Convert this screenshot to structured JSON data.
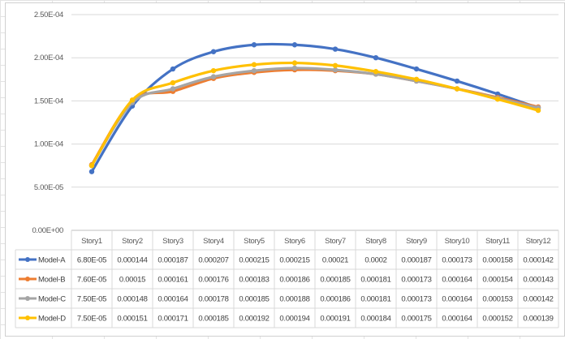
{
  "chart_data": {
    "type": "line",
    "title": "",
    "xlabel": "",
    "ylabel": "",
    "categories": [
      "Story1",
      "Story2",
      "Story3",
      "Story4",
      "Story5",
      "Story6",
      "Story7",
      "Story8",
      "Story9",
      "Story10",
      "Story11",
      "Story12"
    ],
    "y_ticks": [
      "0.00E+00",
      "5.00E-05",
      "1.00E-04",
      "1.50E-04",
      "2.00E-04",
      "2.50E-04"
    ],
    "ylim": [
      0,
      0.00025
    ],
    "grid": true,
    "legend": "data-table",
    "series": [
      {
        "name": "Model-A",
        "color": "#4472c4",
        "values": [
          6.8e-05,
          0.000144,
          0.000187,
          0.000207,
          0.000215,
          0.000215,
          0.00021,
          0.0002,
          0.000187,
          0.000173,
          0.000158,
          0.000142
        ],
        "labels": [
          "6.80E-05",
          "0.000144",
          "0.000187",
          "0.000207",
          "0.000215",
          "0.000215",
          "0.00021",
          "0.0002",
          "0.000187",
          "0.000173",
          "0.000158",
          "0.000142"
        ]
      },
      {
        "name": "Model-B",
        "color": "#ed7d31",
        "values": [
          7.6e-05,
          0.00015,
          0.000161,
          0.000176,
          0.000183,
          0.000186,
          0.000185,
          0.000181,
          0.000173,
          0.000164,
          0.000154,
          0.000143
        ],
        "labels": [
          "7.60E-05",
          "0.00015",
          "0.000161",
          "0.000176",
          "0.000183",
          "0.000186",
          "0.000185",
          "0.000181",
          "0.000173",
          "0.000164",
          "0.000154",
          "0.000143"
        ]
      },
      {
        "name": "Model-C",
        "color": "#a5a5a5",
        "values": [
          7.5e-05,
          0.000148,
          0.000164,
          0.000178,
          0.000185,
          0.000188,
          0.000186,
          0.000181,
          0.000173,
          0.000164,
          0.000153,
          0.000142
        ],
        "labels": [
          "7.50E-05",
          "0.000148",
          "0.000164",
          "0.000178",
          "0.000185",
          "0.000188",
          "0.000186",
          "0.000181",
          "0.000173",
          "0.000164",
          "0.000153",
          "0.000142"
        ]
      },
      {
        "name": "Model-D",
        "color": "#ffc000",
        "values": [
          7.5e-05,
          0.000151,
          0.000171,
          0.000185,
          0.000192,
          0.000194,
          0.000191,
          0.000184,
          0.000175,
          0.000164,
          0.000152,
          0.000139
        ],
        "labels": [
          "7.50E-05",
          "0.000151",
          "0.000171",
          "0.000185",
          "0.000192",
          "0.000194",
          "0.000191",
          "0.000184",
          "0.000175",
          "0.000164",
          "0.000152",
          "0.000139"
        ]
      }
    ]
  }
}
